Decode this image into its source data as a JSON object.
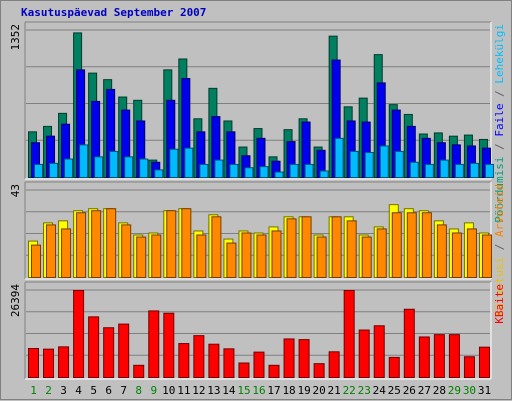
{
  "chart_data": {
    "type": "bar",
    "title": "Kasutuspäevad September 2007",
    "categories": [
      "1",
      "2",
      "3",
      "4",
      "5",
      "6",
      "7",
      "8",
      "9",
      "10",
      "11",
      "12",
      "13",
      "14",
      "15",
      "16",
      "17",
      "18",
      "19",
      "20",
      "21",
      "22",
      "23",
      "24",
      "25",
      "26",
      "27",
      "28",
      "29",
      "30",
      "31"
    ],
    "weekend_days": [
      "1",
      "2",
      "8",
      "9",
      "15",
      "16",
      "22",
      "23",
      "29",
      "30"
    ],
    "colors": {
      "title": "#0000c0",
      "weekday_label": "#000000",
      "weekend_label": "#008000",
      "grid": "#808080",
      "plot_bg": "#c0c0c0"
    },
    "panels": [
      {
        "id": "visits",
        "ymax_label": "1352",
        "ymax": 1352,
        "legend": [
          {
            "text": "Pöördumisi",
            "color": "#00a080"
          },
          {
            "text": " / ",
            "color": "#606060"
          },
          {
            "text": "Faile",
            "color": "#0000ff"
          },
          {
            "text": " / ",
            "color": "#606060"
          },
          {
            "text": "Lehekülgi",
            "color": "#00c0ff"
          }
        ],
        "series": [
          {
            "name": "Pöördumisi",
            "color": "#008060",
            "values": [
              420,
              470,
              590,
              1330,
              960,
              900,
              740,
              710,
              160,
              990,
              1090,
              540,
              820,
              520,
              280,
              450,
              190,
              440,
              540,
              280,
              1300,
              650,
              730,
              1130,
              670,
              580,
              400,
              410,
              380,
              390,
              350
            ]
          },
          {
            "name": "Faile",
            "color": "#0000ee",
            "values": [
              320,
              380,
              490,
              990,
              700,
              810,
              620,
              520,
              140,
              710,
              910,
              420,
              560,
              420,
              200,
              360,
              150,
              330,
              510,
              250,
              1080,
              520,
              510,
              870,
              620,
              470,
              360,
              320,
              300,
              290,
              270
            ]
          },
          {
            "name": "Lehekülgi",
            "color": "#00bbff",
            "values": [
              120,
              130,
              170,
              300,
              190,
              240,
              190,
              170,
              70,
              260,
              270,
              120,
              160,
              120,
              90,
              100,
              50,
              120,
              120,
              60,
              360,
              240,
              230,
              290,
              240,
              140,
              120,
              160,
              120,
              130,
              120
            ]
          }
        ]
      },
      {
        "id": "sites",
        "ymax_label": "43",
        "ymax": 43,
        "legend": [
          {
            "text": "Külastusi",
            "color": "#e8c000"
          },
          {
            "text": " / ",
            "color": "#606060"
          },
          {
            "text": "Arvuteid",
            "color": "#ff8000"
          }
        ],
        "series": [
          {
            "name": "Külastusi",
            "color": "#ffff00",
            "values": [
              18,
              27,
              28,
              33,
              34,
              34,
              27,
              21,
              22,
              33,
              34,
              23,
              31,
              19,
              23,
              22,
              25,
              30,
              30,
              21,
              30,
              30,
              21,
              25,
              36,
              34,
              33,
              28,
              24,
              27,
              22
            ]
          },
          {
            "name": "Arvuteid",
            "color": "#ff8800",
            "values": [
              16,
              26,
              24,
              32,
              33,
              34,
              26,
              20,
              21,
              33,
              34,
              21,
              30,
              17,
              22,
              21,
              23,
              29,
              30,
              20,
              30,
              28,
              20,
              24,
              32,
              32,
              32,
              26,
              22,
              24,
              21
            ]
          }
        ]
      },
      {
        "id": "kbytes",
        "ymax_label": "26394",
        "ymax": 26394,
        "legend": [
          {
            "text": "KBaite",
            "color": "#ff0000"
          }
        ],
        "series": [
          {
            "name": "KBaite",
            "color": "#ff0000",
            "values": [
              8800,
              8600,
              9300,
              26394,
              18400,
              15100,
              16200,
              3700,
              20200,
              19500,
              10300,
              12700,
              10100,
              8700,
              4400,
              7700,
              3700,
              11700,
              11500,
              4200,
              7800,
              26394,
              14400,
              15700,
              6100,
              20700,
              12300,
              13000,
              13000,
              6300,
              9200
            ]
          }
        ]
      }
    ]
  }
}
